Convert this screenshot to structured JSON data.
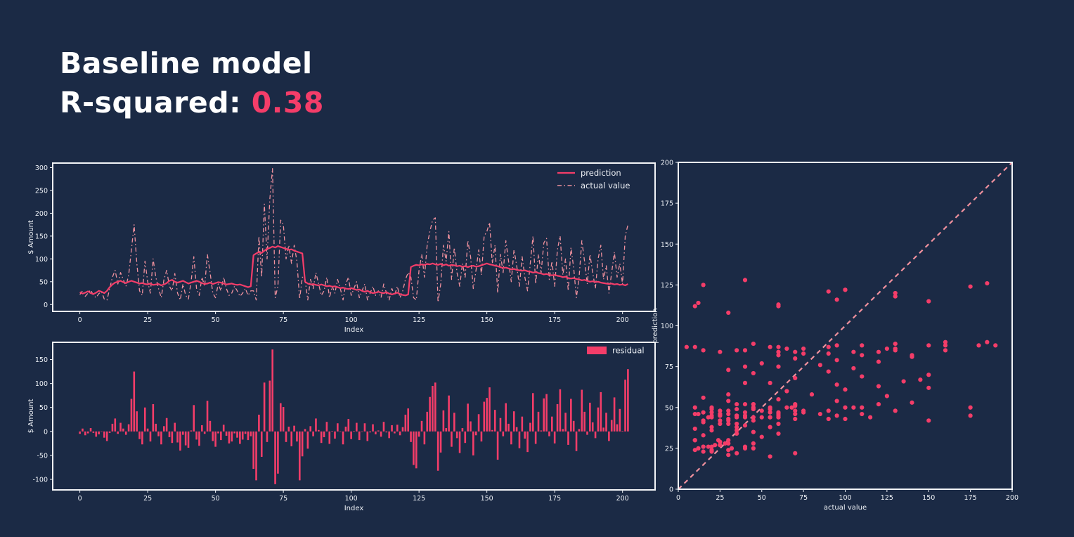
{
  "title": {
    "line1": "Baseline model",
    "line2_label": "R-squared: ",
    "line2_value": "0.38"
  },
  "colors": {
    "background": "#1b2a45",
    "pink": "#f43d69",
    "salmon": "#f0919e",
    "text": "#eef1f6",
    "spine": "#f2f4f7"
  },
  "chart_data": [
    {
      "id": "line_chart",
      "type": "line",
      "xlabel": "Index",
      "ylabel": "$ Amount",
      "xticks": [
        0,
        25,
        50,
        75,
        100,
        125,
        150,
        175,
        200
      ],
      "yticks": [
        0,
        50,
        100,
        150,
        200,
        250,
        300
      ],
      "xlim": [
        -10,
        212
      ],
      "ylim": [
        -15,
        310
      ],
      "legend": [
        {
          "label": "prediction",
          "style": "solid"
        },
        {
          "label": "actual value",
          "style": "dashdot"
        }
      ],
      "x_is_index": true,
      "series": {
        "prediction": [
          27,
          24,
          26,
          29,
          25,
          23,
          26,
          30,
          28,
          25,
          30,
          38,
          44,
          48,
          50,
          52,
          49,
          47,
          50,
          52,
          50,
          48,
          46,
          47,
          45,
          44,
          46,
          43,
          44,
          45,
          42,
          44,
          47,
          52,
          54,
          50,
          48,
          50,
          52,
          49,
          46,
          48,
          50,
          52,
          50,
          47,
          45,
          46,
          48,
          45,
          47,
          49,
          48,
          46,
          44,
          45,
          46,
          44,
          43,
          44,
          42,
          40,
          38,
          40,
          108,
          112,
          115,
          113,
          118,
          122,
          124,
          127,
          125,
          128,
          126,
          124,
          122,
          120,
          121,
          118,
          116,
          114,
          112,
          50,
          46,
          44,
          45,
          43,
          42,
          44,
          42,
          40,
          41,
          39,
          40,
          38,
          36,
          37,
          35,
          34,
          36,
          34,
          32,
          33,
          30,
          28,
          30,
          27,
          25,
          26,
          28,
          26,
          25,
          27,
          24,
          22,
          24,
          26,
          23,
          21,
          20,
          22,
          82,
          85,
          87,
          86,
          88,
          87,
          89,
          88,
          90,
          88,
          87,
          89,
          86,
          88,
          85,
          87,
          86,
          84,
          85,
          83,
          84,
          82,
          84,
          85,
          83,
          84,
          86,
          88,
          90,
          88,
          87,
          85,
          84,
          82,
          80,
          81,
          79,
          77,
          78,
          76,
          75,
          74,
          75,
          73,
          72,
          70,
          71,
          69,
          68,
          66,
          67,
          65,
          64,
          65,
          63,
          62,
          60,
          61,
          58,
          57,
          58,
          56,
          55,
          53,
          54,
          52,
          50,
          51,
          49,
          50,
          48,
          47,
          46,
          45,
          46,
          44,
          45,
          43,
          44,
          42,
          45
        ],
        "actual": [
          22,
          30,
          18,
          25,
          32,
          20,
          15,
          24,
          28,
          12,
          10,
          35,
          60,
          75,
          45,
          70,
          55,
          40,
          65,
          120,
          175,
          90,
          30,
          20,
          95,
          50,
          25,
          100,
          60,
          35,
          15,
          55,
          75,
          40,
          30,
          68,
          25,
          10,
          45,
          20,
          12,
          50,
          105,
          35,
          20,
          60,
          40,
          110,
          70,
          25,
          15,
          45,
          30,
          60,
          35,
          20,
          25,
          40,
          30,
          18,
          25,
          35,
          20,
          30,
          30,
          10,
          150,
          60,
          220,
          100,
          230,
          298,
          15,
          40,
          185,
          175,
          100,
          130,
          90,
          130,
          95,
          12,
          60,
          55,
          10,
          55,
          35,
          70,
          45,
          20,
          30,
          60,
          15,
          40,
          25,
          55,
          35,
          10,
          45,
          60,
          20,
          35,
          50,
          15,
          30,
          45,
          10,
          25,
          40,
          20,
          30,
          15,
          45,
          25,
          10,
          35,
          20,
          40,
          15,
          30,
          55,
          70,
          60,
          15,
          10,
          75,
          110,
          60,
          130,
          160,
          185,
          190,
          5,
          45,
          130,
          95,
          160,
          55,
          125,
          70,
          40,
          90,
          60,
          140,
          105,
          35,
          75,
          120,
          65,
          150,
          160,
          180,
          90,
          130,
          25,
          110,
          70,
          140,
          95,
          50,
          120,
          85,
          40,
          105,
          60,
          30,
          90,
          150,
          45,
          110,
          70,
          135,
          145,
          55,
          95,
          40,
          120,
          150,
          65,
          100,
          30,
          125,
          80,
          15,
          60,
          140,
          95,
          45,
          110,
          70,
          35,
          100,
          130,
          55,
          85,
          25,
          70,
          115,
          60,
          90,
          45,
          150,
          175
        ]
      }
    },
    {
      "id": "residual_chart",
      "type": "bar",
      "xlabel": "Index",
      "ylabel": "$ Amount",
      "xticks": [
        0,
        25,
        50,
        75,
        100,
        125,
        150,
        175,
        200
      ],
      "yticks": [
        -100,
        -50,
        0,
        50,
        100,
        150
      ],
      "xlim": [
        -10,
        212
      ],
      "ylim": [
        -122,
        186
      ],
      "legend": [
        {
          "label": "residual",
          "style": "swatch"
        }
      ],
      "values_note": "residual[i] = actual[i] - prediction[i], from line_chart series"
    },
    {
      "id": "scatter_chart",
      "type": "scatter",
      "xlabel": "actual value",
      "ylabel": "prediction",
      "xticks": [
        0,
        25,
        50,
        75,
        100,
        125,
        150,
        175,
        200
      ],
      "yticks": [
        0,
        25,
        50,
        75,
        100,
        125,
        150,
        175,
        200
      ],
      "xlim": [
        0,
        200
      ],
      "ylim": [
        0,
        200
      ],
      "reference_line": {
        "from": [
          0,
          0
        ],
        "to": [
          200,
          200
        ],
        "style": "dashed"
      },
      "points_note": "(x, y) = (actual[i], prediction[i]), from line_chart series"
    }
  ]
}
